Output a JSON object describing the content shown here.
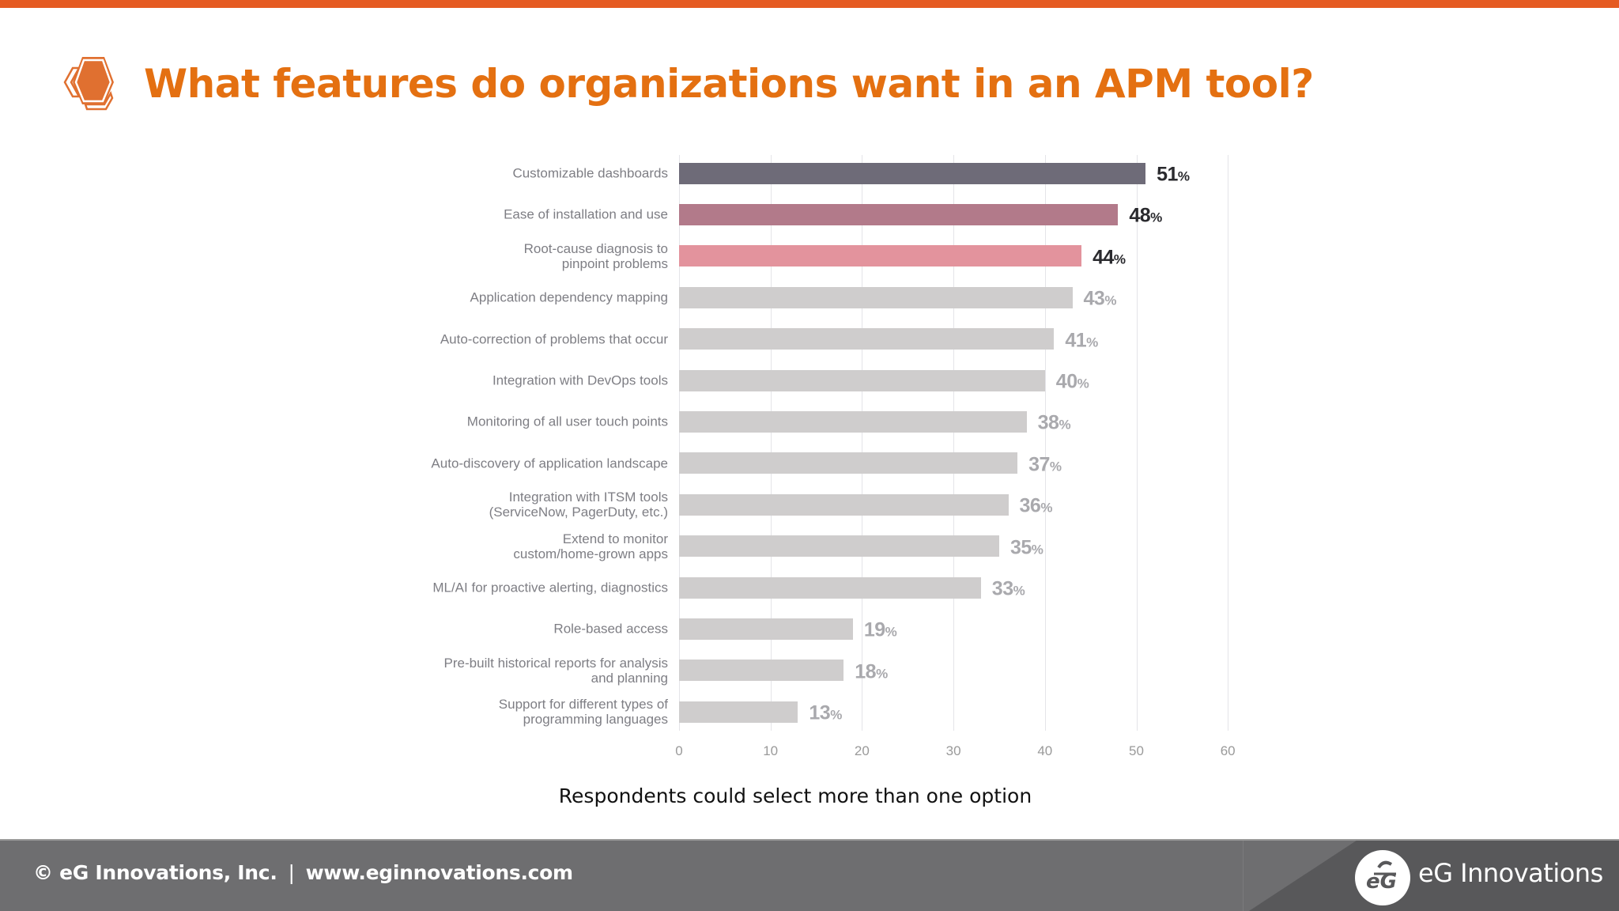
{
  "header": {
    "title": "What features do organizations want in an APM tool?",
    "icon": "hexagon-icon",
    "accent_color": "#e55b22",
    "title_color": "#e47011"
  },
  "chart_data": {
    "type": "bar",
    "orientation": "horizontal",
    "title": "What features do organizations want in an APM tool?",
    "xlabel": "",
    "ylabel": "",
    "xlim": [
      0,
      60
    ],
    "x_ticks": [
      0,
      10,
      20,
      30,
      40,
      50,
      60
    ],
    "grid": true,
    "value_suffix": "%",
    "categories": [
      "Customizable dashboards",
      "Ease of installation and use",
      "Root-cause diagnosis to\npinpoint problems",
      "Application dependency mapping",
      "Auto-correction of problems that occur",
      "Integration with DevOps tools",
      "Monitoring of all user touch points",
      "Auto-discovery of application landscape",
      "Integration with ITSM tools\n(ServiceNow, PagerDuty, etc.)",
      "Extend to monitor\ncustom/home-grown apps",
      "ML/AI for proactive alerting, diagnostics",
      "Role-based access",
      "Pre-built historical reports for analysis\nand planning",
      "Support for different types of\nprogramming languages"
    ],
    "values": [
      51,
      48,
      44,
      43,
      41,
      40,
      38,
      37,
      36,
      35,
      33,
      19,
      18,
      13
    ],
    "bar_colors": [
      "#6e6b78",
      "#b27a8a",
      "#e3939d",
      "#cfcdcd",
      "#cfcdcd",
      "#cfcdcd",
      "#cfcdcd",
      "#cfcdcd",
      "#cfcdcd",
      "#cfcdcd",
      "#cfcdcd",
      "#cfcdcd",
      "#cfcdcd",
      "#cfcdcd"
    ],
    "value_label_colors": [
      "#2a2a2e",
      "#2a2a2e",
      "#2a2a2e",
      "#a9a9ad",
      "#a9a9ad",
      "#a9a9ad",
      "#a9a9ad",
      "#a9a9ad",
      "#a9a9ad",
      "#a9a9ad",
      "#a9a9ad",
      "#a9a9ad",
      "#a9a9ad",
      "#a9a9ad"
    ],
    "note": "Respondents could select more than one option"
  },
  "footer": {
    "copyright": "© eG Innovations, Inc.",
    "separator": "|",
    "website": "www.eginnovations.com",
    "logo_text": "eG Innovations",
    "logo_icon": "eg-logo-icon"
  }
}
